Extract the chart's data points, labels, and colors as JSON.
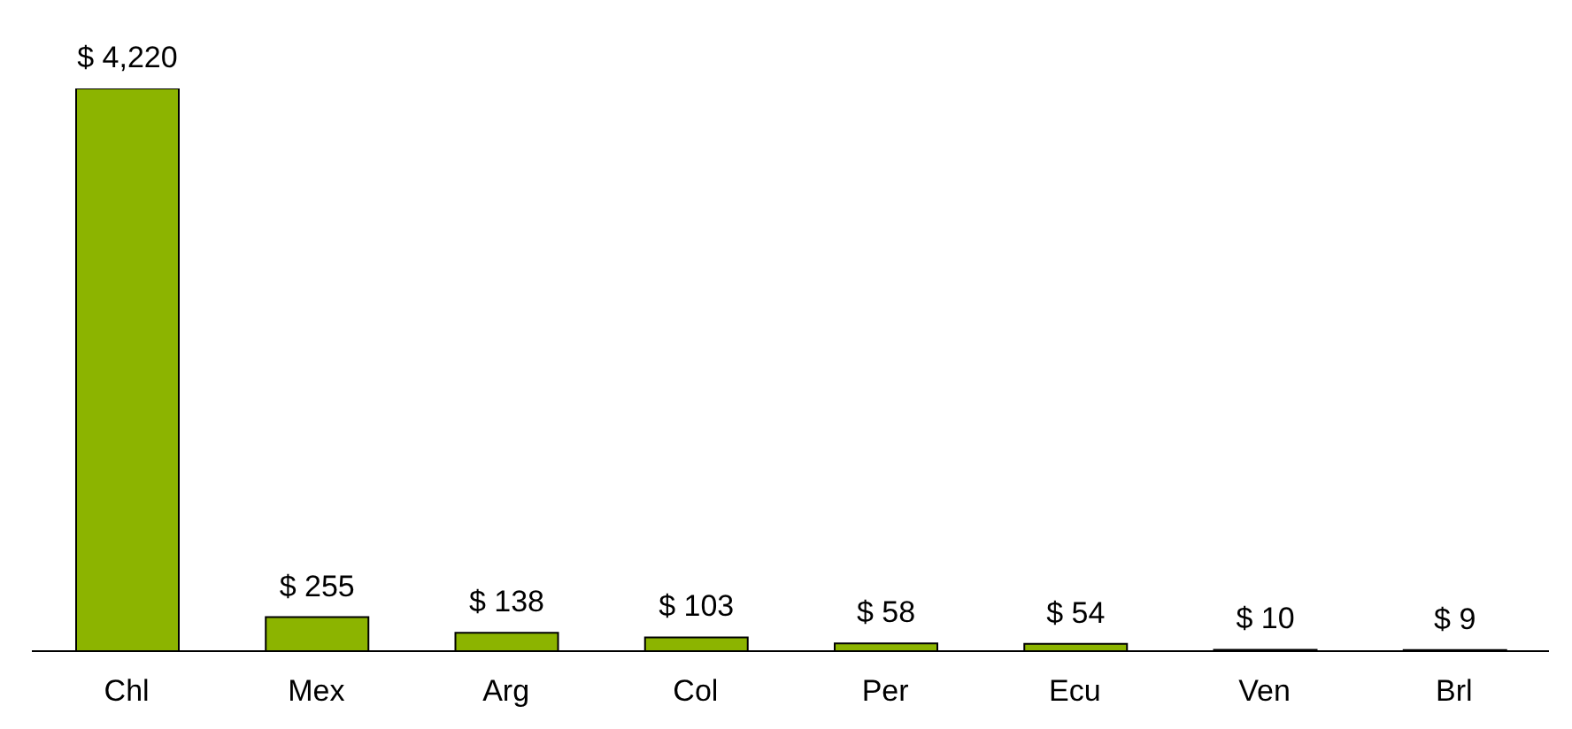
{
  "chart_data": {
    "type": "bar",
    "categories": [
      "Chl",
      "Mex",
      "Arg",
      "Col",
      "Per",
      "Ecu",
      "Ven",
      "Brl"
    ],
    "values": [
      4220,
      255,
      138,
      103,
      58,
      54,
      10,
      9
    ],
    "value_labels": [
      "$ 4,220",
      "$ 255",
      "$ 138",
      "$ 103",
      "$ 58",
      "$ 54",
      "$ 10",
      "$ 9"
    ],
    "color": "#8cb400",
    "grid": false,
    "legend": false
  }
}
